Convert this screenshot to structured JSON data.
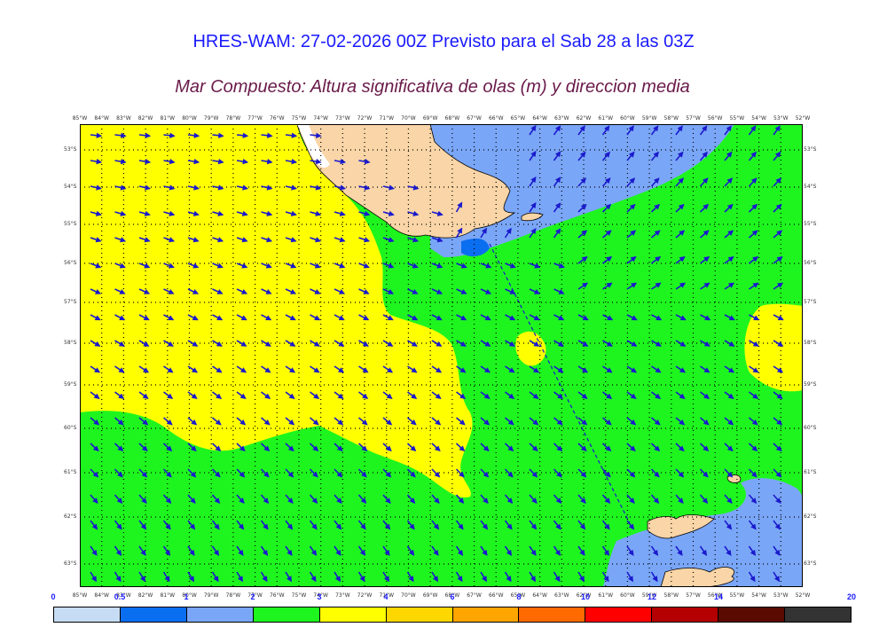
{
  "header": {
    "title": "HRES-WAM: 27-02-2026 00Z Previsto para el Sab 28 a las 03Z",
    "subtitle": "Mar Compuesto: Altura significativa de olas (m) y direccion media"
  },
  "map": {
    "lon_labels": [
      "85°W",
      "84°W",
      "83°W",
      "82°W",
      "81°W",
      "80°W",
      "79°W",
      "78°W",
      "77°W",
      "76°W",
      "75°W",
      "74°W",
      "73°W",
      "72°W",
      "71°W",
      "70°W",
      "69°W",
      "68°W",
      "67°W",
      "66°W",
      "65°W",
      "64°W",
      "63°W",
      "62°W",
      "61°W",
      "60°W",
      "59°W",
      "58°W",
      "57°W",
      "56°W",
      "55°W",
      "54°W",
      "53°W",
      "52°W"
    ],
    "lat_labels": [
      "53°S",
      "54°S",
      "55°S",
      "56°S",
      "57°S",
      "58°S",
      "59°S",
      "60°S",
      "61°S",
      "62°S",
      "63°S"
    ],
    "colors": {
      "land": "#f9d5a7",
      "coast": "#000000",
      "arrow": "#1a1acc",
      "grid": "#000000",
      "band_1_2": "#7aa6f7",
      "band_2_3": "#1ef51e",
      "band_3_4": "#ffff00",
      "band_0_5_1": "#0a6ef0"
    }
  },
  "colorbar": {
    "labels": [
      "0",
      "0.5",
      "1",
      "2",
      "3",
      "4",
      "6",
      "8",
      "10",
      "12",
      "14",
      "20"
    ],
    "colors": [
      "#c6dcf4",
      "#0a6ef0",
      "#7aa6f7",
      "#1ef51e",
      "#ffff00",
      "#ffd700",
      "#ffa500",
      "#ff6a00",
      "#ff0000",
      "#b40000",
      "#5a0a00",
      "#333333"
    ]
  }
}
